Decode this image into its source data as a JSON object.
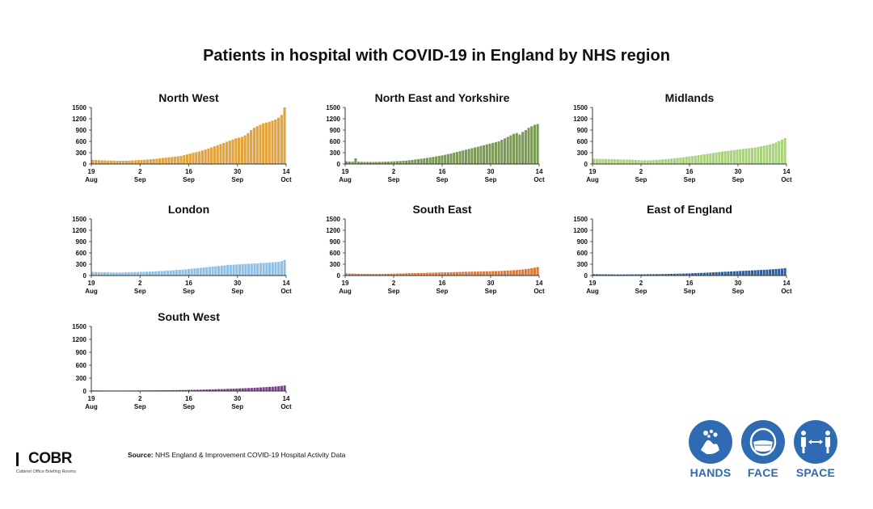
{
  "title": "Patients in hospital with COVID-19 in England by NHS region",
  "source_label": "Source:",
  "source_text": "NHS England & Improvement COVID-19 Hospital Activity Data",
  "logo": {
    "name": "COBR",
    "subtitle": "Cabinet Office Briefing Rooms"
  },
  "slogans": [
    {
      "label": "HANDS",
      "icon": "hands-washing-icon"
    },
    {
      "label": "FACE",
      "icon": "face-mask-icon"
    },
    {
      "label": "SPACE",
      "icon": "social-distance-icon"
    }
  ],
  "colors": {
    "slogan_blue": "#2e6bb3"
  },
  "chart_data": [
    {
      "type": "bar",
      "title": "North West",
      "color": "#e0a33d",
      "x_ticks": [
        {
          "day": "19",
          "month": "Aug"
        },
        {
          "day": "2",
          "month": "Sep"
        },
        {
          "day": "16",
          "month": "Sep"
        },
        {
          "day": "30",
          "month": "Sep"
        },
        {
          "day": "14",
          "month": "Oct"
        }
      ],
      "y_ticks": [
        0,
        300,
        600,
        900,
        1200,
        1500
      ],
      "ylim": [
        0,
        1500
      ],
      "start_date": "19 Aug",
      "end_date": "14 Oct",
      "values": [
        110,
        105,
        100,
        98,
        95,
        92,
        90,
        88,
        86,
        85,
        85,
        88,
        90,
        95,
        100,
        105,
        108,
        112,
        118,
        125,
        132,
        140,
        150,
        160,
        170,
        178,
        185,
        195,
        205,
        215,
        235,
        255,
        275,
        295,
        315,
        335,
        360,
        385,
        410,
        440,
        470,
        500,
        530,
        560,
        590,
        620,
        650,
        680,
        700,
        720,
        760,
        820,
        900,
        960,
        1000,
        1040,
        1080,
        1100,
        1120,
        1150,
        1180,
        1230,
        1300,
        1500
      ]
    },
    {
      "type": "bar",
      "title": "North East and Yorkshire",
      "color": "#7a9a55",
      "x_ticks": [
        {
          "day": "19",
          "month": "Aug"
        },
        {
          "day": "2",
          "month": "Sep"
        },
        {
          "day": "16",
          "month": "Sep"
        },
        {
          "day": "30",
          "month": "Sep"
        },
        {
          "day": "14",
          "month": "Oct"
        }
      ],
      "y_ticks": [
        0,
        300,
        600,
        900,
        1200,
        1500
      ],
      "ylim": [
        0,
        1500
      ],
      "start_date": "19 Aug",
      "end_date": "14 Oct",
      "values": [
        70,
        65,
        60,
        150,
        60,
        58,
        56,
        55,
        54,
        55,
        56,
        58,
        60,
        62,
        65,
        68,
        72,
        76,
        80,
        85,
        92,
        100,
        110,
        120,
        130,
        140,
        150,
        162,
        175,
        188,
        200,
        215,
        230,
        245,
        262,
        280,
        300,
        320,
        340,
        360,
        380,
        400,
        420,
        440,
        460,
        480,
        500,
        520,
        540,
        560,
        580,
        600,
        640,
        680,
        720,
        760,
        800,
        820,
        780,
        850,
        900,
        960,
        1000,
        1040,
        1060
      ]
    },
    {
      "type": "bar",
      "title": "Midlands",
      "color": "#a9d37a",
      "x_ticks": [
        {
          "day": "19",
          "month": "Aug"
        },
        {
          "day": "2",
          "month": "Sep"
        },
        {
          "day": "16",
          "month": "Sep"
        },
        {
          "day": "30",
          "month": "Sep"
        },
        {
          "day": "14",
          "month": "Oct"
        }
      ],
      "y_ticks": [
        0,
        300,
        600,
        900,
        1200,
        1500
      ],
      "ylim": [
        0,
        1500
      ],
      "start_date": "19 Aug",
      "end_date": "14 Oct",
      "values": [
        140,
        138,
        136,
        134,
        132,
        130,
        128,
        126,
        124,
        122,
        120,
        118,
        116,
        112,
        108,
        105,
        100,
        98,
        96,
        100,
        104,
        110,
        116,
        122,
        128,
        135,
        142,
        150,
        160,
        170,
        180,
        190,
        200,
        210,
        220,
        232,
        244,
        256,
        268,
        280,
        292,
        305,
        318,
        330,
        340,
        350,
        360,
        370,
        380,
        390,
        400,
        410,
        420,
        430,
        440,
        455,
        470,
        485,
        500,
        520,
        540,
        570,
        610,
        650,
        690
      ]
    },
    {
      "type": "bar",
      "title": "London",
      "color": "#8fc0e6",
      "x_ticks": [
        {
          "day": "19",
          "month": "Aug"
        },
        {
          "day": "2",
          "month": "Sep"
        },
        {
          "day": "16",
          "month": "Sep"
        },
        {
          "day": "30",
          "month": "Sep"
        },
        {
          "day": "14",
          "month": "Oct"
        }
      ],
      "y_ticks": [
        0,
        300,
        600,
        900,
        1200,
        1500
      ],
      "ylim": [
        0,
        1500
      ],
      "start_date": "19 Aug",
      "end_date": "14 Oct",
      "values": [
        95,
        92,
        90,
        88,
        86,
        84,
        82,
        80,
        80,
        80,
        82,
        84,
        86,
        88,
        90,
        92,
        95,
        98,
        100,
        104,
        108,
        112,
        116,
        120,
        125,
        130,
        135,
        140,
        146,
        152,
        158,
        165,
        172,
        180,
        188,
        196,
        204,
        212,
        220,
        228,
        236,
        244,
        252,
        260,
        268,
        276,
        282,
        288,
        292,
        296,
        300,
        305,
        310,
        315,
        320,
        325,
        330,
        335,
        340,
        345,
        350,
        355,
        360,
        380,
        410
      ]
    },
    {
      "type": "bar",
      "title": "South East",
      "color": "#d97b3a",
      "x_ticks": [
        {
          "day": "19",
          "month": "Aug"
        },
        {
          "day": "2",
          "month": "Sep"
        },
        {
          "day": "16",
          "month": "Sep"
        },
        {
          "day": "30",
          "month": "Sep"
        },
        {
          "day": "14",
          "month": "Oct"
        }
      ],
      "y_ticks": [
        0,
        300,
        600,
        900,
        1200,
        1500
      ],
      "ylim": [
        0,
        1500
      ],
      "start_date": "19 Aug",
      "end_date": "14 Oct",
      "values": [
        55,
        52,
        50,
        48,
        46,
        45,
        44,
        43,
        42,
        42,
        42,
        43,
        44,
        45,
        46,
        48,
        50,
        52,
        54,
        56,
        58,
        60,
        62,
        64,
        66,
        68,
        70,
        72,
        74,
        76,
        78,
        80,
        82,
        84,
        86,
        88,
        90,
        92,
        94,
        96,
        98,
        100,
        102,
        104,
        106,
        108,
        110,
        112,
        114,
        116,
        118,
        120,
        124,
        128,
        132,
        136,
        140,
        146,
        152,
        160,
        170,
        180,
        195,
        210,
        225
      ]
    },
    {
      "type": "bar",
      "title": "East of England",
      "color": "#2e5f9c",
      "x_ticks": [
        {
          "day": "19",
          "month": "Aug"
        },
        {
          "day": "2",
          "month": "Sep"
        },
        {
          "day": "16",
          "month": "Sep"
        },
        {
          "day": "30",
          "month": "Sep"
        },
        {
          "day": "14",
          "month": "Oct"
        }
      ],
      "y_ticks": [
        0,
        300,
        600,
        900,
        1200,
        1500
      ],
      "ylim": [
        0,
        1500
      ],
      "start_date": "19 Aug",
      "end_date": "14 Oct",
      "values": [
        35,
        34,
        33,
        32,
        31,
        30,
        30,
        29,
        29,
        29,
        29,
        30,
        30,
        31,
        31,
        32,
        32,
        33,
        34,
        35,
        36,
        37,
        38,
        39,
        40,
        42,
        44,
        46,
        48,
        50,
        52,
        55,
        58,
        61,
        64,
        67,
        70,
        73,
        76,
        80,
        84,
        88,
        92,
        96,
        100,
        104,
        108,
        112,
        116,
        120,
        124,
        128,
        132,
        136,
        140,
        144,
        148,
        152,
        156,
        160,
        166,
        172,
        178,
        185,
        195
      ]
    },
    {
      "type": "bar",
      "title": "South West",
      "color": "#7a3f8e",
      "x_ticks": [
        {
          "day": "19",
          "month": "Aug"
        },
        {
          "day": "2",
          "month": "Sep"
        },
        {
          "day": "16",
          "month": "Sep"
        },
        {
          "day": "30",
          "month": "Sep"
        },
        {
          "day": "14",
          "month": "Oct"
        }
      ],
      "y_ticks": [
        0,
        300,
        600,
        900,
        1200,
        1500
      ],
      "ylim": [
        0,
        1500
      ],
      "start_date": "19 Aug",
      "end_date": "14 Oct",
      "values": [
        15,
        14,
        14,
        13,
        13,
        12,
        12,
        12,
        12,
        12,
        12,
        12,
        13,
        13,
        13,
        14,
        14,
        15,
        15,
        16,
        16,
        17,
        17,
        18,
        18,
        19,
        20,
        21,
        22,
        23,
        24,
        25,
        26,
        27,
        28,
        30,
        32,
        34,
        36,
        38,
        40,
        42,
        44,
        46,
        48,
        50,
        52,
        55,
        58,
        61,
        64,
        67,
        70,
        73,
        76,
        80,
        84,
        88,
        92,
        96,
        100,
        106,
        112,
        120,
        128
      ]
    }
  ]
}
